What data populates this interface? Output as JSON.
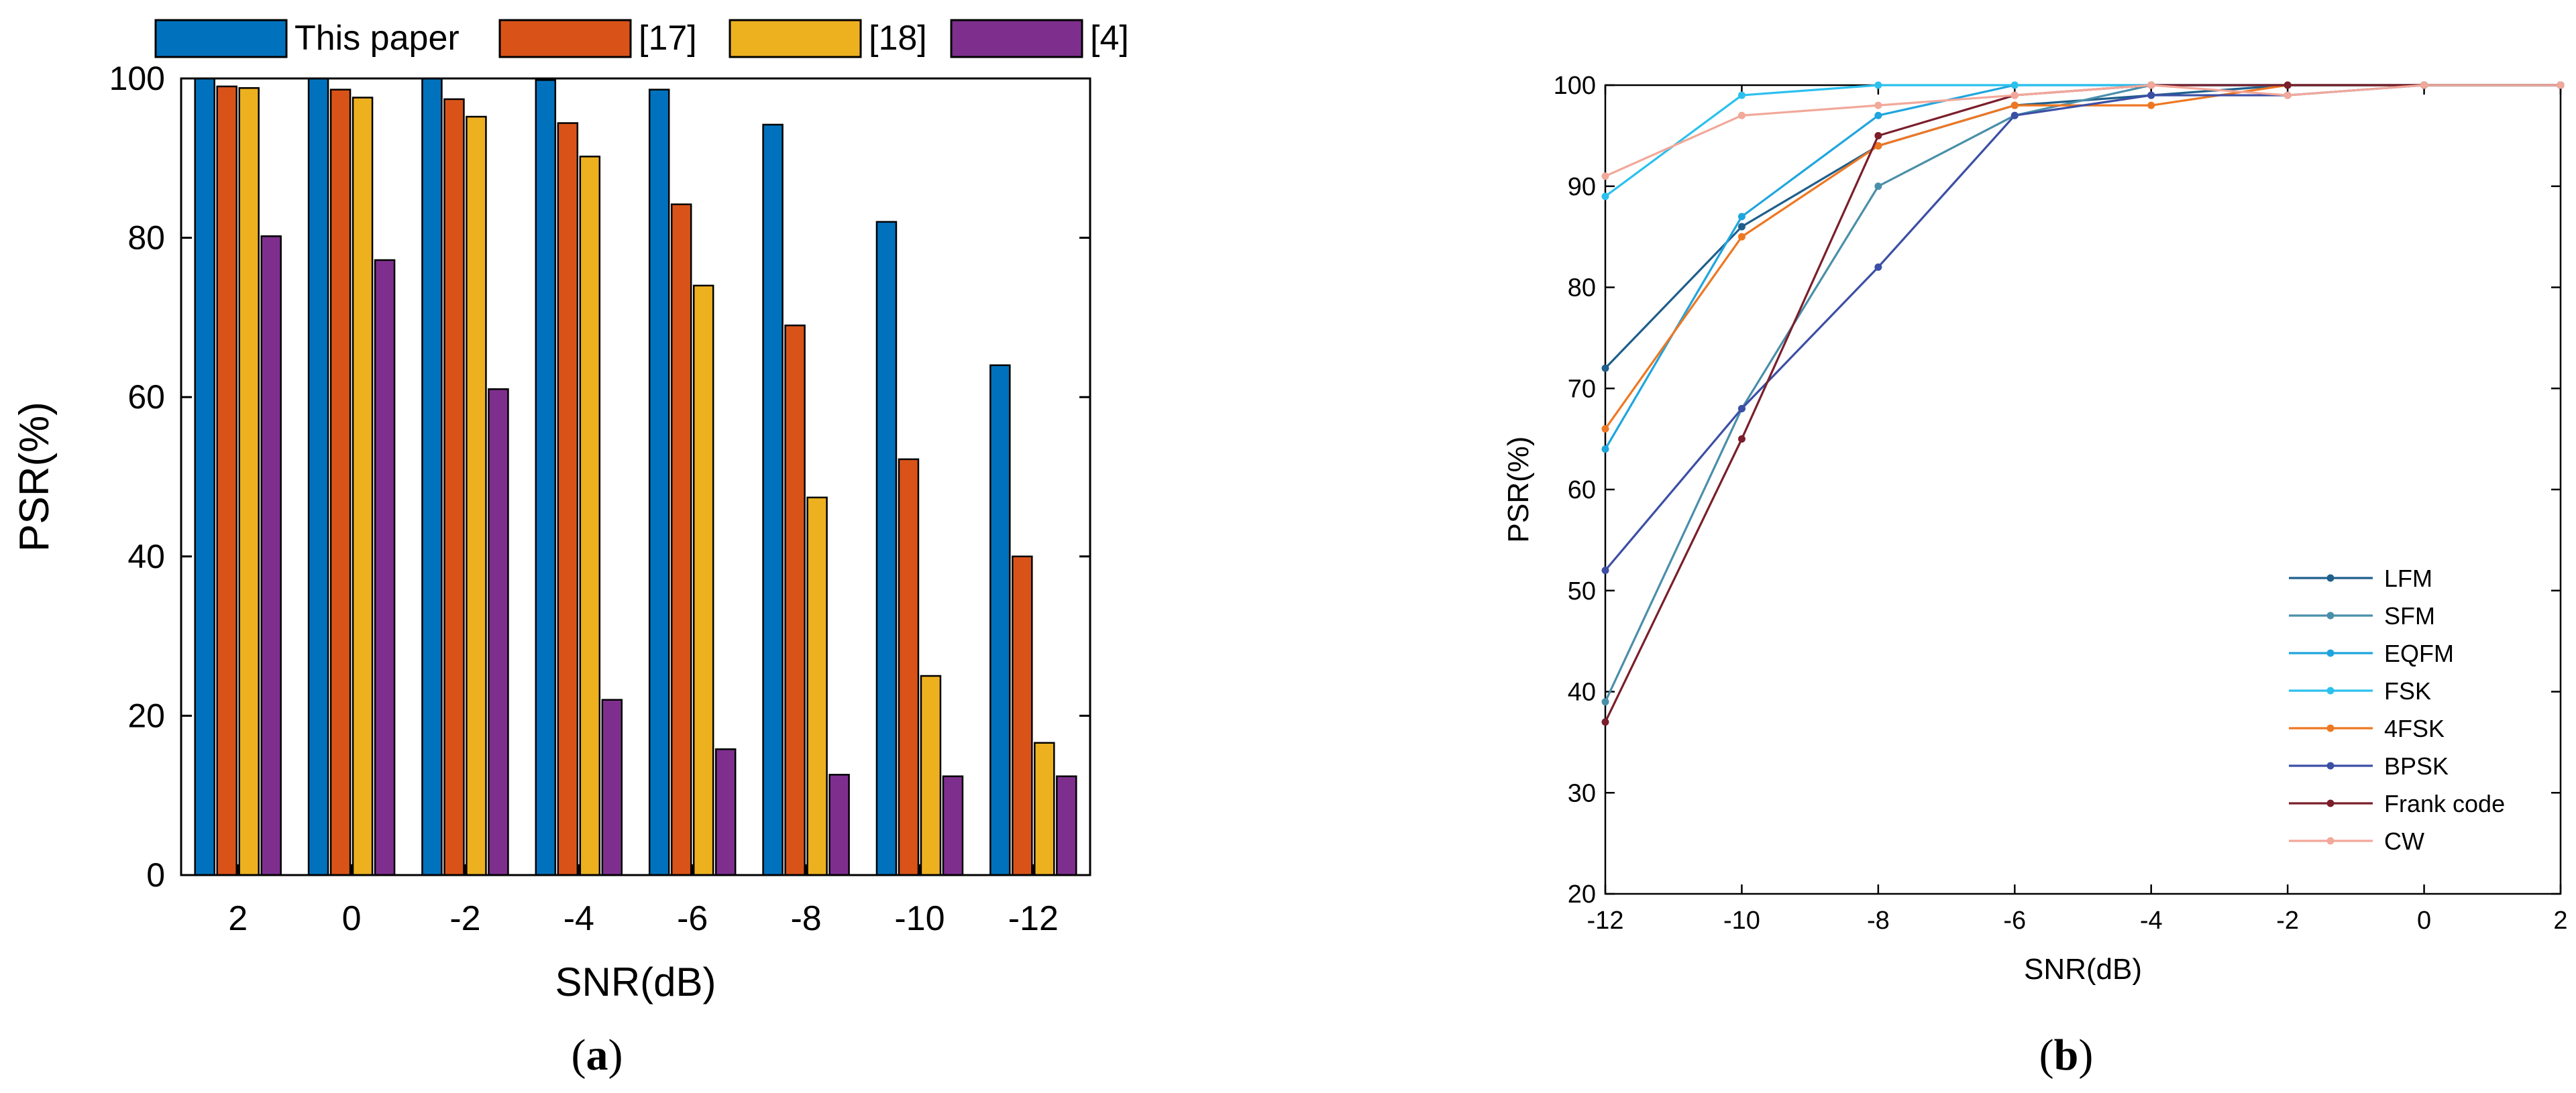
{
  "chart_data": [
    {
      "type": "bar",
      "panel_label": {
        "open": "(",
        "letter": "a",
        "close": ")"
      },
      "xlabel": "SNR(dB)",
      "ylabel": "PSR(%)",
      "ylim": [
        0,
        100
      ],
      "yticks": [
        0,
        20,
        40,
        60,
        80,
        100
      ],
      "categories": [
        "2",
        "0",
        "-2",
        "-4",
        "-6",
        "-8",
        "-10",
        "-12"
      ],
      "series": [
        {
          "name": "This paper",
          "color": "#0072BD",
          "values": [
            100,
            100,
            100,
            99.8,
            98.6,
            94.2,
            82,
            64
          ]
        },
        {
          "name": "[17]",
          "color": "#D95319",
          "values": [
            99,
            98.6,
            97.4,
            94.4,
            84.2,
            69,
            52.2,
            40
          ]
        },
        {
          "name": "[18]",
          "color": "#EDB120",
          "values": [
            98.8,
            97.6,
            95.2,
            90.2,
            74,
            47.4,
            25,
            16.6
          ]
        },
        {
          "name": "[4]",
          "color": "#7E2F8E",
          "values": [
            80.2,
            77.2,
            61,
            22,
            15.8,
            12.6,
            12.4,
            12.4
          ]
        }
      ],
      "legend": "top"
    },
    {
      "type": "line",
      "panel_label": {
        "open": "(",
        "letter": "b",
        "close": ")"
      },
      "xlabel": "SNR(dB)",
      "ylabel": "PSR(%)",
      "xlim": [
        -12,
        2
      ],
      "ylim": [
        20,
        100
      ],
      "xticks": [
        -12,
        -10,
        -8,
        -6,
        -4,
        -2,
        0,
        2
      ],
      "yticks": [
        20,
        30,
        40,
        50,
        60,
        70,
        80,
        90,
        100
      ],
      "x": [
        -12,
        -10,
        -8,
        -6,
        -4,
        -2,
        0,
        2
      ],
      "series": [
        {
          "name": "LFM",
          "color": "#1E5F8C",
          "values": [
            72,
            86,
            94,
            98,
            99,
            100,
            100,
            100
          ]
        },
        {
          "name": "SFM",
          "color": "#4A8FAA",
          "values": [
            39,
            68,
            90,
            97,
            100,
            100,
            100,
            100
          ]
        },
        {
          "name": "EQFM",
          "color": "#1FA5DE",
          "values": [
            64,
            87,
            97,
            100,
            100,
            100,
            100,
            100
          ]
        },
        {
          "name": "FSK",
          "color": "#2CC0EE",
          "values": [
            89,
            99,
            100,
            100,
            100,
            100,
            100,
            100
          ]
        },
        {
          "name": "4FSK",
          "color": "#EE7722",
          "values": [
            66,
            85,
            94,
            98,
            98,
            100,
            100,
            100
          ]
        },
        {
          "name": "BPSK",
          "color": "#3C4FA5",
          "values": [
            52,
            68,
            82,
            97,
            99,
            99,
            100,
            100
          ]
        },
        {
          "name": "Frank code",
          "color": "#7A1F2B",
          "values": [
            37,
            65,
            95,
            99,
            100,
            100,
            100,
            100
          ]
        },
        {
          "name": "CW",
          "color": "#F2A89A",
          "values": [
            91,
            97,
            98,
            99,
            100,
            99,
            100,
            100
          ]
        }
      ],
      "legend": "bottom-right"
    }
  ]
}
